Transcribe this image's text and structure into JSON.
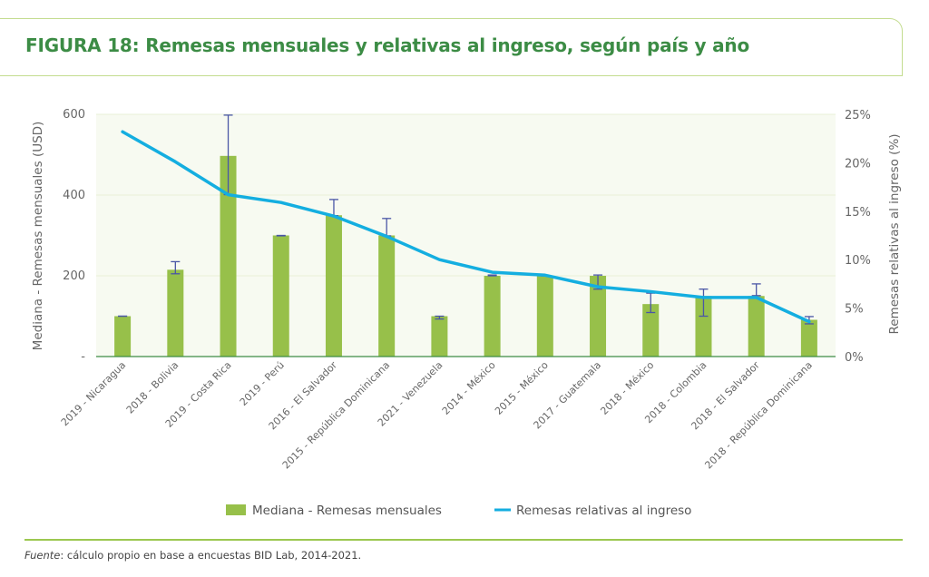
{
  "title": "FIGURA 18: Remesas mensuales y relativas al ingreso, según país y año",
  "footer": {
    "source_label": "Fuente",
    "source_text": ": cálculo propio en base a encuestas BID Lab, 2014-2021."
  },
  "chart_data": {
    "type": "bar+line",
    "ylabel_left": "Mediana - Remesas mensuales (USD)",
    "ylabel_right": "Remesas relativas al ingreso (%)",
    "ylim_left": [
      0,
      600
    ],
    "ylim_right": [
      0,
      25
    ],
    "yticks_left": [
      "-",
      "200",
      "400",
      "600"
    ],
    "yticks_right": [
      "0%",
      "5%",
      "10%",
      "15%",
      "20%",
      "25%"
    ],
    "grid": true,
    "legend_placement": "bottom",
    "colors": {
      "bar": "#97c04a",
      "line": "#14aee0",
      "error": "#4a56a6",
      "plot_bg": "#f7faf1",
      "title": "#3c8c45"
    },
    "categories": [
      "2019 - Nicaragua",
      "2018 - Bolivia",
      "2019 - Costa Rica",
      "2019 - Perú",
      "2016 - El Salvador",
      "2015 - República Dominicana",
      "2021 - Venezuela",
      "2014 - México",
      "2015 - México",
      "2017 - Guatemala",
      "2018 - México",
      "2018 - Colombia",
      "2018 - El Salvador",
      "2018 - República Dominicana"
    ],
    "series": [
      {
        "name": "Mediana - Remesas mensuales",
        "type": "bar",
        "axis": "left",
        "values": [
          100,
          215,
          497,
          300,
          350,
          300,
          100,
          200,
          200,
          200,
          130,
          150,
          150,
          91
        ],
        "error_low": [
          100,
          205,
          401,
          299,
          349,
          299,
          93,
          200,
          200,
          167,
          109,
          100,
          151,
          81
        ],
        "error_high": [
          100,
          235,
          598,
          300,
          389,
          342,
          100,
          202,
          200,
          202,
          157,
          167,
          180,
          99
        ]
      },
      {
        "name": "Remesas relativas al ingreso",
        "type": "line",
        "axis": "right",
        "values": [
          23.2,
          20.1,
          16.7,
          15.9,
          14.5,
          12.4,
          10.0,
          8.7,
          8.4,
          7.2,
          6.7,
          6.1,
          6.1,
          3.6
        ]
      }
    ]
  }
}
